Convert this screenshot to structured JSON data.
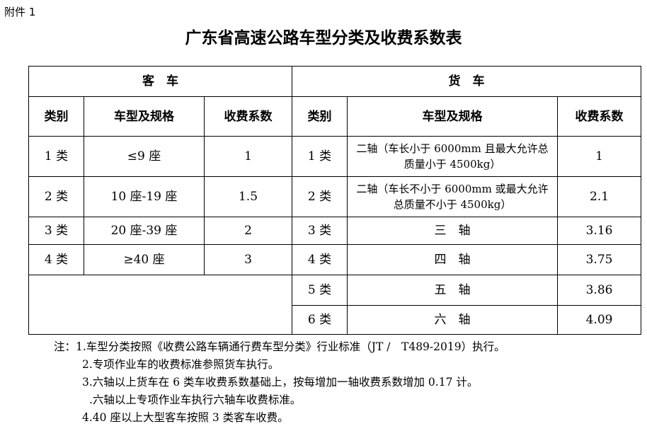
{
  "attachment_label": "附件 1",
  "title": "广东省高速公路车型分类及收费系数表",
  "table": {
    "group_headers": {
      "passenger": "客　车",
      "truck": "货　车"
    },
    "column_headers": {
      "class": "类别",
      "spec": "车型及规格",
      "coefficient": "收费系数"
    },
    "passenger_rows": [
      {
        "class": "1 类",
        "spec": "≤9 座",
        "coefficient": "1"
      },
      {
        "class": "2 类",
        "spec": "10 座-19 座",
        "coefficient": "1.5"
      },
      {
        "class": "3 类",
        "spec": "20 座-39 座",
        "coefficient": "2"
      },
      {
        "class": "4 类",
        "spec": "≥40 座",
        "coefficient": "3"
      }
    ],
    "truck_rows": [
      {
        "class": "1 类",
        "spec": "二轴（车长小于 6000mm 且最大允许总质量小于 4500kg）",
        "coefficient": "1"
      },
      {
        "class": "2 类",
        "spec": "二轴（车长不小于 6000mm 或最大允许总质量不小于 4500kg）",
        "coefficient": "2.1"
      },
      {
        "class": "3 类",
        "spec": "三　轴",
        "coefficient": "3.16"
      },
      {
        "class": "4 类",
        "spec": "四　轴",
        "coefficient": "3.75"
      },
      {
        "class": "5 类",
        "spec": "五　轴",
        "coefficient": "3.86"
      },
      {
        "class": "6 类",
        "spec": "六　轴",
        "coefficient": "4.09"
      }
    ]
  },
  "notes": [
    "注：1.车型分类按照《收费公路车辆通行费车型分类》行业标准（JT /　T489-2019）执行。",
    "2.专项作业车的收费标准参照货车执行。",
    "3.六轴以上货车在 6 类车收费系数基础上，按每增加一轴收费系数增加 0.17 计。",
    ".六轴以上专项作业车执行六轴车收费标准。",
    "4.40 座以上大型客车按照 3 类客车收费。"
  ]
}
